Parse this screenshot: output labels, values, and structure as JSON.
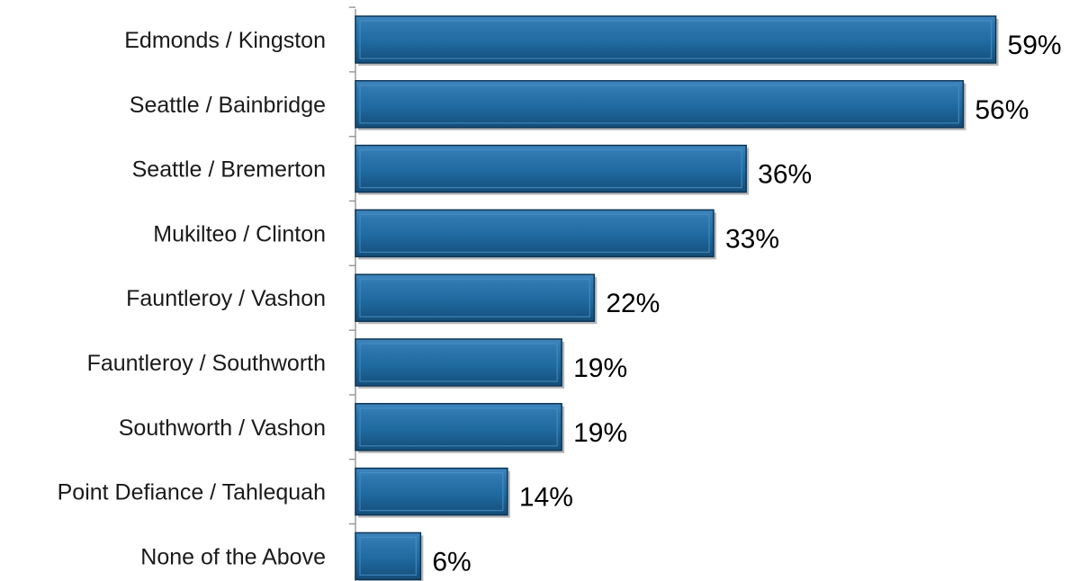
{
  "chart_data": {
    "type": "bar",
    "orientation": "horizontal",
    "categories": [
      "Edmonds / Kingston",
      "Seattle / Bainbridge",
      "Seattle / Bremerton",
      "Mukilteo / Clinton",
      "Fauntleroy / Vashon",
      "Fauntleroy / Southworth",
      "Southworth / Vashon",
      "Point Defiance / Tahlequah",
      "None of the Above"
    ],
    "values": [
      59,
      56,
      36,
      33,
      22,
      19,
      19,
      14,
      6
    ],
    "value_labels": [
      "59%",
      "56%",
      "36%",
      "33%",
      "22%",
      "19%",
      "19%",
      "14%",
      "6%"
    ],
    "xlim": [
      0,
      65
    ],
    "grid": false,
    "legend": "none",
    "bar_color": "#1f6aa0",
    "bar_edge_color": "#0b3556",
    "bar_highlight_color": "#4a93c8"
  }
}
